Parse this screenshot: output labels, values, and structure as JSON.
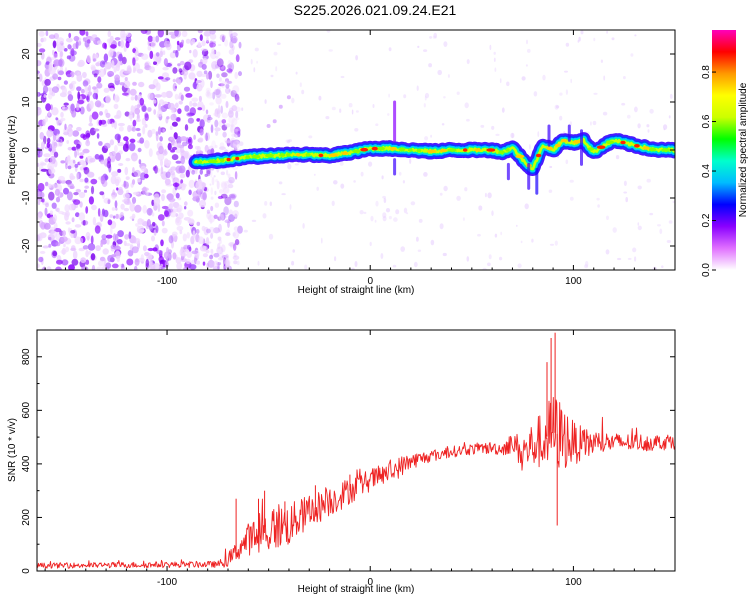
{
  "title": "S225.2026.021.09.24.E21",
  "chart_data": [
    {
      "type": "heatmap",
      "description_axes": "spectrogram",
      "xlabel": "Height of straight line (km)",
      "ylabel": "Frequency (Hz)",
      "xlim": [
        -164,
        150
      ],
      "ylim": [
        -25,
        25
      ],
      "xticks": [
        -100,
        0,
        100
      ],
      "yticks": [
        -20,
        -10,
        0,
        10,
        20
      ],
      "noise_region_x": [
        -164,
        -72
      ],
      "signal_start_x": -86,
      "trace": {
        "x": [
          -86,
          -80,
          -70,
          -60,
          -50,
          -40,
          -30,
          -20,
          -10,
          0,
          10,
          20,
          30,
          40,
          50,
          60,
          65,
          70,
          75,
          80,
          85,
          90,
          95,
          100,
          105,
          110,
          115,
          120,
          130,
          140,
          150
        ],
        "y": [
          -2.5,
          -2.5,
          -2,
          -1.5,
          -1.2,
          -1,
          -1,
          -1.2,
          -0.5,
          0.3,
          0.3,
          0,
          -0.3,
          0,
          0,
          0,
          -0.5,
          0.5,
          -2,
          -4,
          1,
          0,
          2,
          1.5,
          2,
          -0.5,
          1,
          2,
          1,
          0,
          0
        ]
      },
      "colorbar": {
        "label": "Normalized spectral amplitude",
        "ticks": [
          0.0,
          0.2,
          0.4,
          0.6,
          0.8
        ],
        "range": [
          0,
          0.97
        ],
        "colors": [
          "#ffffff",
          "#e070ff",
          "#8a00ff",
          "#0000ff",
          "#00bbff",
          "#00ffcc",
          "#00ff00",
          "#ccff00",
          "#ffff00",
          "#ff9900",
          "#ff0000",
          "#ff00bb"
        ]
      }
    },
    {
      "type": "line",
      "xlabel": "Height of straight line (km)",
      "ylabel": "SNR (10 * v/v)",
      "xlim": [
        -164,
        150
      ],
      "ylim": [
        0,
        900
      ],
      "xticks": [
        -100,
        0,
        100
      ],
      "yticks": [
        0,
        200,
        400,
        600,
        800
      ],
      "color": "#ee2222",
      "envelope": {
        "x": [
          -164,
          -75,
          -70,
          -65,
          -60,
          -55,
          -50,
          -45,
          -40,
          -35,
          -30,
          -25,
          -20,
          -15,
          -10,
          -5,
          0,
          5,
          10,
          15,
          20,
          25,
          30,
          40,
          50,
          60,
          65,
          70,
          75,
          80,
          85,
          90,
          95,
          100,
          105,
          110,
          120,
          130,
          140,
          150
        ],
        "y": [
          20,
          25,
          40,
          80,
          120,
          130,
          150,
          170,
          170,
          200,
          220,
          240,
          260,
          280,
          300,
          320,
          340,
          355,
          370,
          390,
          410,
          420,
          430,
          445,
          455,
          460,
          455,
          480,
          440,
          470,
          490,
          520,
          500,
          480,
          470,
          480,
          480,
          480,
          480,
          485
        ]
      },
      "amplitude": {
        "x": [
          -164,
          -75,
          -65,
          -55,
          -45,
          -35,
          -25,
          -15,
          -5,
          5,
          15,
          25,
          45,
          65,
          70,
          75,
          80,
          85,
          90,
          95,
          100,
          110,
          120,
          150
        ],
        "y": [
          10,
          12,
          40,
          80,
          90,
          70,
          60,
          55,
          45,
          40,
          40,
          25,
          20,
          25,
          40,
          70,
          90,
          110,
          150,
          130,
          80,
          50,
          35,
          30
        ]
      },
      "spikes": [
        [
          -66,
          270
        ],
        [
          -55,
          270
        ],
        [
          -52,
          300
        ],
        [
          -42,
          260
        ],
        [
          -27,
          320
        ],
        [
          -10,
          360
        ],
        [
          91,
          890
        ],
        [
          89,
          870
        ],
        [
          87,
          780
        ],
        [
          92,
          170
        ]
      ]
    }
  ]
}
